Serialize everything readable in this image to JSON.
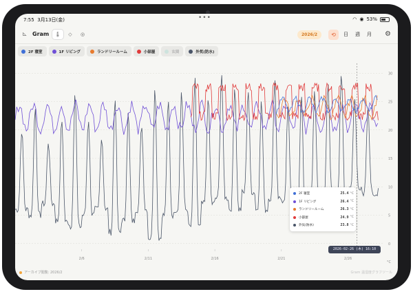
{
  "status_bar": {
    "time": "7:55",
    "date": "3月13日(金)",
    "battery": "53%",
    "battery_level": 0.53
  },
  "toolbar": {
    "app_title": "Gram",
    "archive_label": "2026/2",
    "view_day": "日",
    "view_week": "週",
    "view_month": "月"
  },
  "legend": [
    {
      "label": "2F 寝室",
      "color": "#3f6fd6",
      "visible": true
    },
    {
      "label": "1F リビング",
      "color": "#6f4fd6",
      "visible": true
    },
    {
      "label": "ランドリールーム",
      "color": "#e77b2e",
      "visible": true
    },
    {
      "label": "小部屋",
      "color": "#e03a3a",
      "visible": true
    },
    {
      "label": "玄関",
      "color": "#8bc5b8",
      "visible": false
    },
    {
      "label": "外気(防水)",
      "color": "#4a5568",
      "visible": true
    }
  ],
  "chart_data": {
    "type": "line",
    "x_axis_type": "date",
    "x_ticks": [
      "2/6",
      "2/11",
      "2/16",
      "2/21",
      "2/26"
    ],
    "y_ticks": [
      0,
      5,
      10,
      15,
      20,
      25,
      30
    ],
    "y_unit": "°C",
    "ylim": [
      -1,
      31
    ],
    "y_axis_side": "right",
    "grid": "horizontal dashed",
    "cursor_time": "2026-02-26 (木) 16:10",
    "series": [
      {
        "name": "2F 寝室",
        "color": "#3f6fd6"
      },
      {
        "name": "1F リビング",
        "color": "#6f4fd6"
      },
      {
        "name": "ランドリールーム",
        "color": "#e77b2e"
      },
      {
        "name": "小部屋",
        "color": "#e03a3a"
      },
      {
        "name": "外気(防水)",
        "color": "#4a5568"
      }
    ]
  },
  "tooltip": {
    "rows": [
      {
        "name": "2F 寝室",
        "value": "25.4",
        "unit": "°C",
        "color": "#3f6fd6"
      },
      {
        "name": "1F リビング",
        "value": "26.4",
        "unit": "°C",
        "color": "#6f4fd6"
      },
      {
        "name": "ランドリールーム",
        "value": "26.3",
        "unit": "°C",
        "color": "#e77b2e"
      },
      {
        "name": "小部屋",
        "value": "24.9",
        "unit": "°C",
        "color": "#e03a3a"
      },
      {
        "name": "外気(防水)",
        "value": "23.8",
        "unit": "°C",
        "color": "#4a5568"
      }
    ],
    "time": "2026-02-26 (木) 16:10"
  },
  "footer": {
    "archive_note": "アーカイブ閲覧: 2026/2",
    "brand": "Gram 温湿度グラフツール"
  }
}
